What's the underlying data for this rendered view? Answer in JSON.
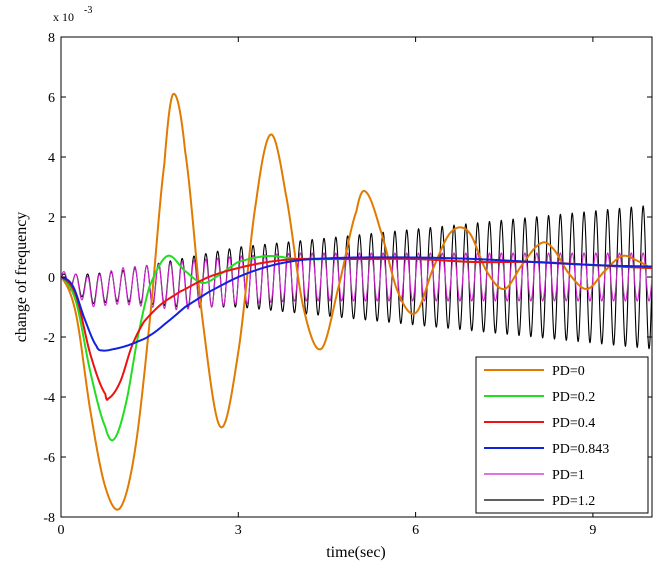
{
  "chart_data": {
    "type": "line",
    "title": "",
    "xlabel": "time(sec)",
    "ylabel": "change of frequency",
    "y_multiplier_label": "x 10",
    "y_multiplier_exponent": "-3",
    "xlim": [
      0,
      10
    ],
    "ylim": [
      -8,
      8
    ],
    "x_ticks": [
      0,
      3,
      6,
      9
    ],
    "y_ticks": [
      -8,
      -6,
      -4,
      -2,
      0,
      2,
      4,
      6,
      8
    ],
    "legend_position": "bottom-right",
    "grid": false,
    "series": [
      {
        "name": "PD=0",
        "color": "#e07b00",
        "x": [
          0,
          0.25,
          0.5,
          0.75,
          1.0,
          1.25,
          1.5,
          1.75,
          1.9,
          2.1,
          2.4,
          2.7,
          3.0,
          3.3,
          3.55,
          3.8,
          4.1,
          4.4,
          4.7,
          5.0,
          5.15,
          5.4,
          5.7,
          6.0,
          6.3,
          6.6,
          6.9,
          7.2,
          7.5,
          7.8,
          8.1,
          8.3,
          8.6,
          8.9,
          9.2,
          9.5,
          9.8,
          10.0
        ],
        "y": [
          0,
          -1.2,
          -4.5,
          -7.0,
          -7.7,
          -5.8,
          -1.5,
          3.8,
          6.1,
          4.2,
          -1.5,
          -5.0,
          -2.5,
          2.5,
          4.75,
          2.8,
          -1.0,
          -2.4,
          -0.3,
          2.2,
          2.85,
          1.6,
          -0.5,
          -1.2,
          0.3,
          1.5,
          1.5,
          0.2,
          -0.4,
          0.4,
          1.1,
          1.0,
          0.1,
          -0.4,
          0.2,
          0.7,
          0.5,
          0.3
        ]
      },
      {
        "name": "PD=0.2",
        "color": "#22dd22",
        "x": [
          0,
          0.25,
          0.5,
          0.75,
          0.9,
          1.1,
          1.3,
          1.5,
          1.8,
          2.1,
          2.4,
          2.7,
          3.0,
          3.5,
          4.0,
          5.0,
          6.0,
          7.0,
          8.0,
          9.0,
          10.0
        ],
        "y": [
          0,
          -0.8,
          -3.2,
          -5.0,
          -5.4,
          -4.2,
          -2.0,
          -0.3,
          0.7,
          0.2,
          -0.2,
          0.1,
          0.5,
          0.7,
          0.6,
          0.6,
          0.6,
          0.5,
          0.5,
          0.4,
          0.3
        ]
      },
      {
        "name": "PD=0.4",
        "color": "#ee1111",
        "x": [
          0,
          0.25,
          0.5,
          0.75,
          0.8,
          1.0,
          1.2,
          1.4,
          1.7,
          2.0,
          2.5,
          3.0,
          3.5,
          4.0,
          5.0,
          6.0,
          7.0,
          8.0,
          9.0,
          10.0
        ],
        "y": [
          0,
          -0.6,
          -2.6,
          -3.9,
          -4.05,
          -3.5,
          -2.3,
          -1.5,
          -0.9,
          -0.5,
          0.0,
          0.3,
          0.5,
          0.6,
          0.6,
          0.6,
          0.5,
          0.5,
          0.4,
          0.3
        ]
      },
      {
        "name": "PD=0.843",
        "color": "#1122dd",
        "x": [
          0,
          0.2,
          0.4,
          0.6,
          0.7,
          0.9,
          1.1,
          1.3,
          1.5,
          1.8,
          2.1,
          2.5,
          3.0,
          3.5,
          4.0,
          4.5,
          5.0,
          6.0,
          7.0,
          8.0,
          9.0,
          10.0
        ],
        "y": [
          0,
          -0.3,
          -1.4,
          -2.3,
          -2.45,
          -2.4,
          -2.3,
          -2.15,
          -1.95,
          -1.5,
          -1.0,
          -0.5,
          0.0,
          0.35,
          0.55,
          0.62,
          0.65,
          0.65,
          0.6,
          0.5,
          0.4,
          0.35
        ]
      },
      {
        "name": "PD=1",
        "color": "#cc22cc",
        "x": [
          0,
          0.5,
          1.0,
          2.0,
          3.0,
          4.0,
          5.0,
          6.0,
          7.0,
          8.0,
          9.0,
          10.0
        ],
        "y": [
          0,
          -0.5,
          -0.3,
          -0.3,
          -0.1,
          0.0,
          0.0,
          0.0,
          0.0,
          0.0,
          0.0,
          0.0
        ],
        "oscillation_amplitude": [
          0.2,
          0.5,
          0.6,
          0.8,
          0.8,
          0.8,
          0.8,
          0.8,
          0.8,
          0.8,
          0.8,
          0.8
        ],
        "oscillation_period": 0.2
      },
      {
        "name": "PD=1.2",
        "color": "#000000",
        "x": [
          0,
          0.5,
          1.0,
          2.0,
          3.0,
          4.0,
          5.0,
          6.0,
          7.0,
          8.0,
          9.0,
          10.0
        ],
        "y": [
          0,
          -0.4,
          -0.3,
          -0.2,
          0.0,
          0.0,
          0.0,
          0.0,
          0.0,
          0.0,
          0.0,
          0.0
        ],
        "oscillation_amplitude": [
          0.1,
          0.5,
          0.5,
          0.8,
          1.0,
          1.2,
          1.4,
          1.6,
          1.8,
          2.0,
          2.2,
          2.4
        ],
        "oscillation_period": 0.2
      }
    ]
  }
}
